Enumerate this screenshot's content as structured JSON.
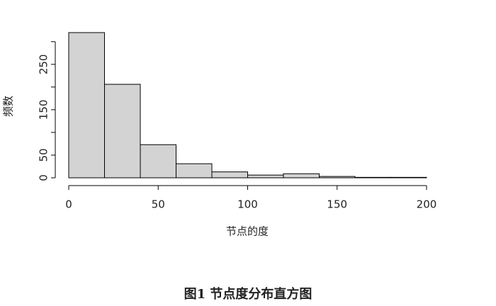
{
  "chart_data": {
    "type": "histogram",
    "caption": "图1  节点度分布直方图",
    "x_label": "节点的度",
    "y_label": "频数",
    "bins": [
      0,
      20,
      40,
      60,
      80,
      100,
      120,
      140,
      160,
      180,
      200
    ],
    "values": [
      320,
      206,
      73,
      31,
      13,
      6,
      9,
      3,
      1,
      1
    ],
    "color": "#d3d3d3",
    "xlim": [
      0,
      200
    ],
    "xticks": [
      0,
      50,
      100,
      150,
      200
    ],
    "ylim": [
      0,
      320
    ],
    "yticks": [
      0,
      50,
      {
        "value": 100,
        "label": null
      },
      150,
      {
        "value": 200,
        "label": null
      },
      250,
      {
        "value": 300,
        "label": null
      }
    ]
  }
}
